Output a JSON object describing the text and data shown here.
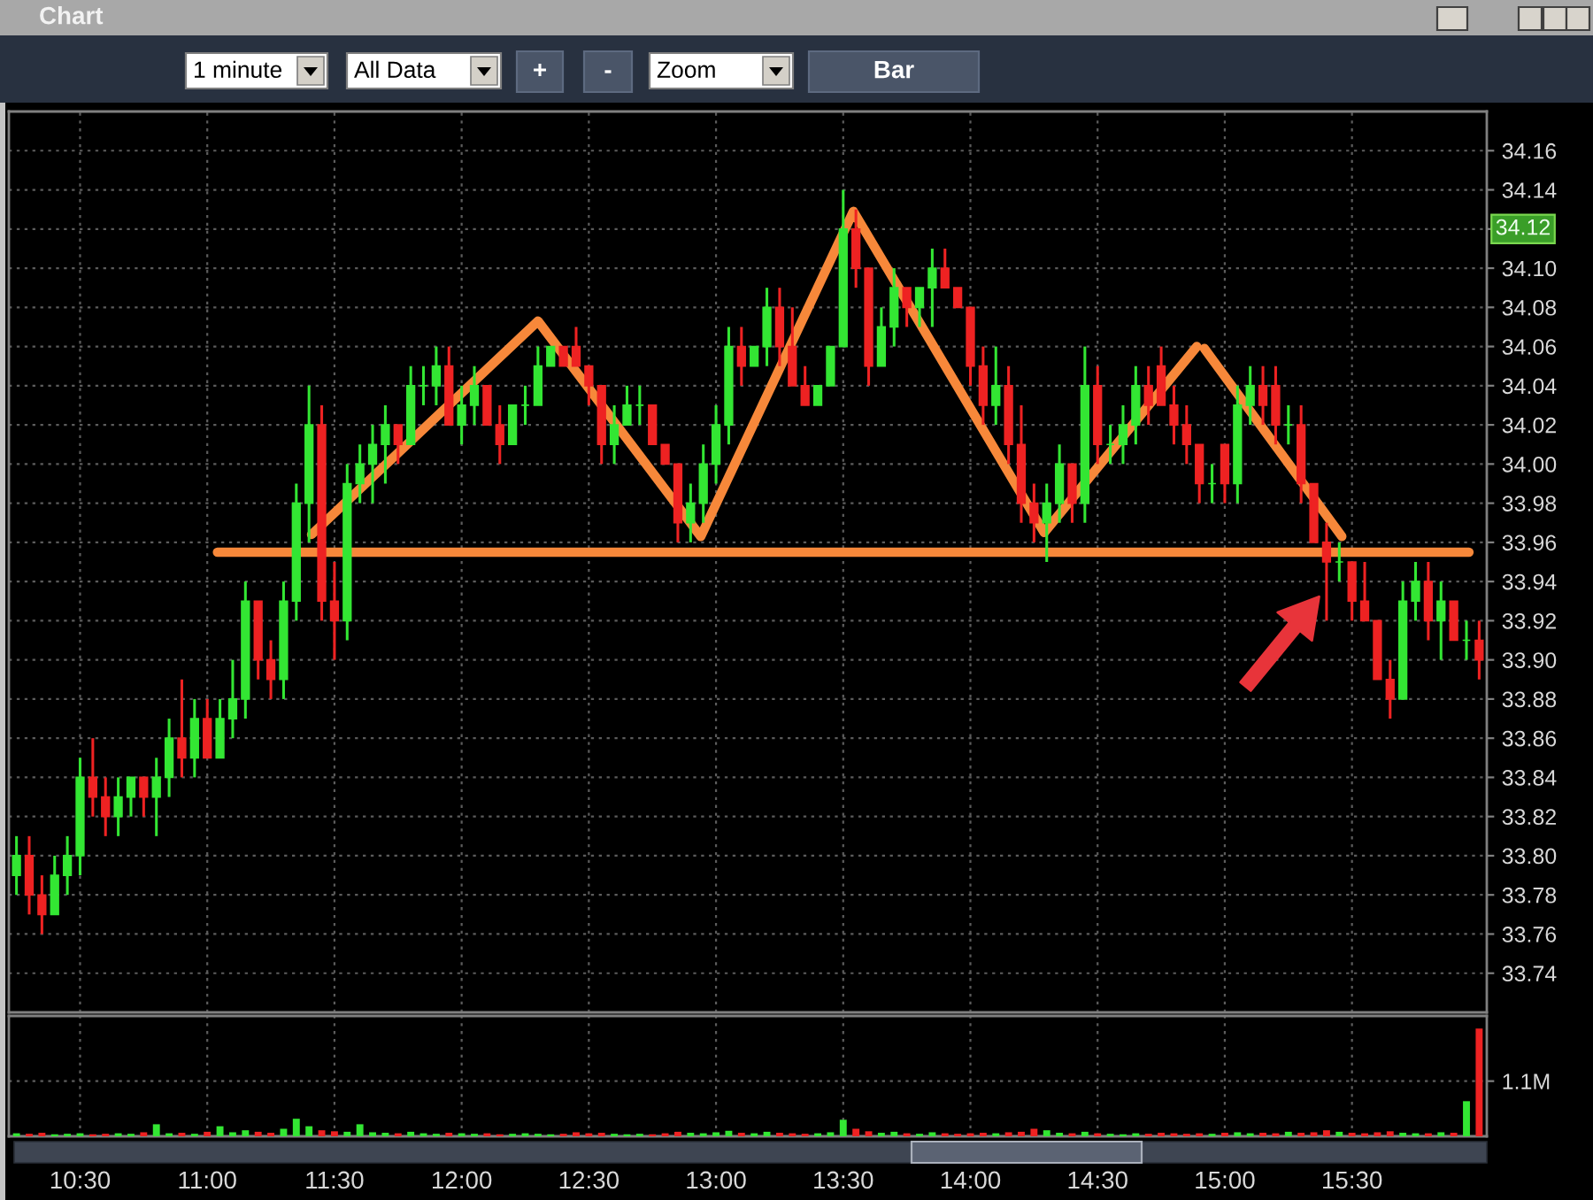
{
  "chart_data": [
    {
      "type": "candlestick",
      "title": "Chart",
      "annotations": [
        "1 minute",
        "All Data",
        "+",
        "-",
        "Zoom",
        "Bar",
        {
          "text": "34.12",
          "y": 34.12
        }
      ],
      "x": [
        10.25,
        10.3,
        10.35,
        10.4,
        10.45,
        10.5,
        10.55,
        10.6,
        10.65,
        10.7,
        10.75,
        10.8,
        10.85,
        10.9,
        10.95,
        11.0,
        11.05,
        11.1,
        11.15,
        11.2,
        11.25,
        11.3,
        11.35,
        11.4,
        11.45,
        11.5,
        11.55,
        11.6,
        11.65,
        11.7,
        11.75,
        11.8,
        11.85,
        11.9,
        11.95,
        12.0,
        12.05,
        12.1,
        12.15,
        12.2,
        12.25,
        12.3,
        12.35,
        12.4,
        12.45,
        12.5,
        12.55,
        12.6,
        12.65,
        12.7,
        12.75,
        12.8,
        12.85,
        12.9,
        12.95,
        13.0,
        13.05,
        13.1,
        13.15,
        13.2,
        13.25,
        13.3,
        13.35,
        13.4,
        13.45,
        13.5,
        13.55,
        13.6,
        13.65,
        13.7,
        13.75,
        13.8,
        13.85,
        13.9,
        13.95,
        14.0,
        14.05,
        14.1,
        14.15,
        14.2,
        14.25,
        14.3,
        14.35,
        14.4,
        14.45,
        14.5,
        14.55,
        14.6,
        14.65,
        14.7,
        14.75,
        14.8,
        14.85,
        14.9,
        14.95,
        15.0,
        15.05,
        15.1,
        15.15,
        15.2,
        15.25,
        15.3,
        15.35,
        15.4,
        15.45,
        15.5,
        15.55,
        15.6,
        15.65,
        15.7,
        15.75,
        15.8,
        15.85,
        15.9,
        15.95,
        16.0
      ],
      "ohlc": [
        [
          33.79,
          33.81,
          33.78,
          33.8
        ],
        [
          33.8,
          33.81,
          33.77,
          33.78
        ],
        [
          33.78,
          33.79,
          33.76,
          33.77
        ],
        [
          33.77,
          33.8,
          33.77,
          33.79
        ],
        [
          33.79,
          33.81,
          33.78,
          33.8
        ],
        [
          33.8,
          33.85,
          33.79,
          33.84
        ],
        [
          33.84,
          33.86,
          33.82,
          33.83
        ],
        [
          33.83,
          33.84,
          33.81,
          33.82
        ],
        [
          33.82,
          33.84,
          33.81,
          33.83
        ],
        [
          33.83,
          33.84,
          33.82,
          33.84
        ],
        [
          33.84,
          33.84,
          33.82,
          33.83
        ],
        [
          33.83,
          33.85,
          33.81,
          33.84
        ],
        [
          33.84,
          33.87,
          33.83,
          33.86
        ],
        [
          33.86,
          33.89,
          33.84,
          33.85
        ],
        [
          33.85,
          33.88,
          33.84,
          33.87
        ],
        [
          33.87,
          33.88,
          33.85,
          33.85
        ],
        [
          33.85,
          33.88,
          33.85,
          33.87
        ],
        [
          33.87,
          33.9,
          33.86,
          33.88
        ],
        [
          33.88,
          33.94,
          33.87,
          33.93
        ],
        [
          33.93,
          33.93,
          33.89,
          33.9
        ],
        [
          33.9,
          33.91,
          33.88,
          33.89
        ],
        [
          33.89,
          33.94,
          33.88,
          33.93
        ],
        [
          33.93,
          33.99,
          33.92,
          33.98
        ],
        [
          33.98,
          34.04,
          33.96,
          34.02
        ],
        [
          34.02,
          34.03,
          33.92,
          33.93
        ],
        [
          33.93,
          33.95,
          33.9,
          33.92
        ],
        [
          33.92,
          34.0,
          33.91,
          33.99
        ],
        [
          33.99,
          34.01,
          33.98,
          34.0
        ],
        [
          34.0,
          34.02,
          33.98,
          34.01
        ],
        [
          34.01,
          34.03,
          33.99,
          34.02
        ],
        [
          34.02,
          34.02,
          34.0,
          34.01
        ],
        [
          34.01,
          34.05,
          34.01,
          34.04
        ],
        [
          34.04,
          34.05,
          34.03,
          34.04
        ],
        [
          34.04,
          34.06,
          34.03,
          34.05
        ],
        [
          34.05,
          34.06,
          34.02,
          34.02
        ],
        [
          34.02,
          34.04,
          34.01,
          34.03
        ],
        [
          34.03,
          34.05,
          34.02,
          34.04
        ],
        [
          34.04,
          34.04,
          34.02,
          34.02
        ],
        [
          34.02,
          34.03,
          34.0,
          34.01
        ],
        [
          34.01,
          34.03,
          34.01,
          34.03
        ],
        [
          34.03,
          34.04,
          34.02,
          34.03
        ],
        [
          34.03,
          34.06,
          34.03,
          34.05
        ],
        [
          34.05,
          34.06,
          34.05,
          34.06
        ],
        [
          34.06,
          34.06,
          34.05,
          34.05
        ],
        [
          34.06,
          34.07,
          34.05,
          34.05
        ],
        [
          34.05,
          34.05,
          34.03,
          34.04
        ],
        [
          34.04,
          34.04,
          34.0,
          34.01
        ],
        [
          34.01,
          34.03,
          34.0,
          34.02
        ],
        [
          34.02,
          34.04,
          34.02,
          34.03
        ],
        [
          34.03,
          34.04,
          34.02,
          34.03
        ],
        [
          34.03,
          34.03,
          34.01,
          34.01
        ],
        [
          34.01,
          34.01,
          34.0,
          34.0
        ],
        [
          34.0,
          34.0,
          33.96,
          33.97
        ],
        [
          33.97,
          33.99,
          33.96,
          33.98
        ],
        [
          33.98,
          34.01,
          33.97,
          34.0
        ],
        [
          34.0,
          34.03,
          33.99,
          34.02
        ],
        [
          34.02,
          34.07,
          34.01,
          34.06
        ],
        [
          34.06,
          34.07,
          34.04,
          34.05
        ],
        [
          34.05,
          34.06,
          34.05,
          34.06
        ],
        [
          34.06,
          34.09,
          34.05,
          34.08
        ],
        [
          34.08,
          34.09,
          34.05,
          34.06
        ],
        [
          34.06,
          34.08,
          34.04,
          34.04
        ],
        [
          34.04,
          34.05,
          34.03,
          34.03
        ],
        [
          34.03,
          34.04,
          34.03,
          34.04
        ],
        [
          34.04,
          34.06,
          34.04,
          34.06
        ],
        [
          34.06,
          34.14,
          34.06,
          34.12
        ],
        [
          34.12,
          34.13,
          34.09,
          34.1
        ],
        [
          34.1,
          34.1,
          34.04,
          34.05
        ],
        [
          34.05,
          34.08,
          34.05,
          34.07
        ],
        [
          34.07,
          34.1,
          34.06,
          34.09
        ],
        [
          34.09,
          34.09,
          34.07,
          34.08
        ],
        [
          34.08,
          34.09,
          34.07,
          34.09
        ],
        [
          34.09,
          34.11,
          34.07,
          34.1
        ],
        [
          34.1,
          34.11,
          34.09,
          34.09
        ],
        [
          34.09,
          34.09,
          34.08,
          34.08
        ],
        [
          34.08,
          34.08,
          34.04,
          34.05
        ],
        [
          34.05,
          34.06,
          34.02,
          34.03
        ],
        [
          34.03,
          34.06,
          34.02,
          34.04
        ],
        [
          34.04,
          34.05,
          34.0,
          34.01
        ],
        [
          34.01,
          34.03,
          33.97,
          33.98
        ],
        [
          33.98,
          33.99,
          33.96,
          33.97
        ],
        [
          33.97,
          33.99,
          33.95,
          33.98
        ],
        [
          33.98,
          34.01,
          33.97,
          34.0
        ],
        [
          34.0,
          34.0,
          33.97,
          33.98
        ],
        [
          33.98,
          34.06,
          33.97,
          34.04
        ],
        [
          34.04,
          34.05,
          34.0,
          34.01
        ],
        [
          34.01,
          34.02,
          34.0,
          34.01
        ],
        [
          34.01,
          34.03,
          34.0,
          34.02
        ],
        [
          34.02,
          34.05,
          34.01,
          34.04
        ],
        [
          34.04,
          34.05,
          34.02,
          34.03
        ],
        [
          34.05,
          34.06,
          34.03,
          34.03
        ],
        [
          34.03,
          34.04,
          34.01,
          34.02
        ],
        [
          34.02,
          34.03,
          34.0,
          34.01
        ],
        [
          34.01,
          34.01,
          33.98,
          33.99
        ],
        [
          33.99,
          34.0,
          33.98,
          33.99
        ],
        [
          34.01,
          34.01,
          33.98,
          33.99
        ],
        [
          33.99,
          34.04,
          33.98,
          34.03
        ],
        [
          34.03,
          34.05,
          34.02,
          34.04
        ],
        [
          34.04,
          34.05,
          34.02,
          34.03
        ],
        [
          34.04,
          34.05,
          34.01,
          34.02
        ],
        [
          34.02,
          34.03,
          34.01,
          34.02
        ],
        [
          34.02,
          34.03,
          33.98,
          33.99
        ],
        [
          33.99,
          33.99,
          33.96,
          33.96
        ],
        [
          33.96,
          33.97,
          33.92,
          33.95
        ],
        [
          33.95,
          33.96,
          33.94,
          33.95
        ],
        [
          33.95,
          33.95,
          33.92,
          33.93
        ],
        [
          33.93,
          33.95,
          33.92,
          33.92
        ],
        [
          33.92,
          33.92,
          33.89,
          33.89
        ],
        [
          33.89,
          33.9,
          33.87,
          33.88
        ],
        [
          33.88,
          33.94,
          33.88,
          33.93
        ],
        [
          33.93,
          33.95,
          33.92,
          33.94
        ],
        [
          33.94,
          33.95,
          33.91,
          33.92
        ],
        [
          33.92,
          33.94,
          33.9,
          33.93
        ],
        [
          33.93,
          33.93,
          33.91,
          33.91
        ],
        [
          33.91,
          33.92,
          33.9,
          33.91
        ],
        [
          33.91,
          33.92,
          33.89,
          33.9
        ]
      ],
      "colors": [
        "#33e633",
        "#ee2222",
        "#ee2222",
        "#33e633",
        "#33e633",
        "#33e633",
        "#ee2222",
        "#ee2222",
        "#33e633",
        "#33e633",
        "#ee2222",
        "#33e633",
        "#33e633",
        "#ee2222",
        "#33e633",
        "#ee2222",
        "#33e633",
        "#33e633",
        "#33e633",
        "#ee2222",
        "#ee2222",
        "#33e633",
        "#33e633",
        "#33e633",
        "#ee2222",
        "#ee2222",
        "#33e633",
        "#33e633",
        "#33e633",
        "#33e633",
        "#ee2222",
        "#33e633",
        "#33e633",
        "#33e633",
        "#ee2222",
        "#33e633",
        "#33e633",
        "#ee2222",
        "#ee2222",
        "#33e633",
        "#33e633",
        "#33e633",
        "#33e633",
        "#ee2222",
        "#ee2222",
        "#ee2222",
        "#ee2222",
        "#33e633",
        "#33e633",
        "#33e633",
        "#ee2222",
        "#ee2222",
        "#ee2222",
        "#33e633",
        "#33e633",
        "#33e633",
        "#33e633",
        "#ee2222",
        "#33e633",
        "#33e633",
        "#ee2222",
        "#ee2222",
        "#ee2222",
        "#33e633",
        "#33e633",
        "#33e633",
        "#ee2222",
        "#ee2222",
        "#33e633",
        "#33e633",
        "#ee2222",
        "#33e633",
        "#33e633",
        "#ee2222",
        "#ee2222",
        "#ee2222",
        "#ee2222",
        "#33e633",
        "#ee2222",
        "#ee2222",
        "#ee2222",
        "#33e633",
        "#33e633",
        "#ee2222",
        "#33e633",
        "#ee2222",
        "#33e633",
        "#33e633",
        "#33e633",
        "#ee2222",
        "#ee2222",
        "#ee2222",
        "#ee2222",
        "#ee2222",
        "#33e633",
        "#ee2222",
        "#33e633",
        "#33e633",
        "#ee2222",
        "#ee2222",
        "#33e633",
        "#ee2222",
        "#ee2222",
        "#ee2222",
        "#33e633",
        "#ee2222",
        "#ee2222",
        "#ee2222",
        "#ee2222",
        "#33e633",
        "#33e633",
        "#ee2222",
        "#33e633",
        "#ee2222",
        "#33e633",
        "#ee2222"
      ],
      "series": [
        {
          "type": "line",
          "color": "#f7883a",
          "x": [
            11.41,
            12.3,
            12.94,
            13.54,
            14.29,
            14.89,
            14.9,
            14.92,
            15.46
          ],
          "values": [
            33.964,
            34.073,
            33.963,
            34.129,
            33.965,
            34.06,
            null,
            34.059,
            33.963
          ]
        },
        {
          "type": "line",
          "color": "#f7883a",
          "x": [
            11.04,
            15.96
          ],
          "values": [
            33.955,
            33.955
          ]
        }
      ],
      "xlim": [
        10.22,
        16.03
      ],
      "ylim": [
        33.72,
        34.18
      ],
      "xticks": [
        {
          "value": 10.5,
          "label": null
        },
        {
          "value": 11,
          "label": null
        },
        {
          "value": 11.5,
          "label": null
        },
        {
          "value": 12,
          "label": null
        },
        {
          "value": 12.5,
          "label": null
        },
        {
          "value": 13,
          "label": null
        },
        {
          "value": 13.5,
          "label": null
        },
        {
          "value": 14,
          "label": null
        },
        {
          "value": 14.5,
          "label": null
        },
        {
          "value": 15,
          "label": null
        },
        {
          "value": 15.5,
          "label": null
        }
      ],
      "yticks": [
        33.74,
        33.76,
        33.78,
        {
          "value": 33.8,
          "label": "33.80"
        },
        33.82,
        33.84,
        33.86,
        33.88,
        {
          "value": 33.9,
          "label": "33.90"
        },
        33.92,
        33.94,
        33.96,
        33.98,
        {
          "value": 34,
          "label": "34.00"
        },
        34.02,
        34.04,
        34.06,
        34.08,
        {
          "value": 34.1,
          "label": "34.10"
        },
        {
          "value": 34.12,
          "label": null
        },
        34.14,
        34.16
      ],
      "grid": true,
      "tick_labels": "y"
    },
    {
      "type": "bar",
      "x": [
        10.25,
        10.3,
        10.35,
        10.4,
        10.45,
        10.5,
        10.55,
        10.6,
        10.65,
        10.7,
        10.75,
        10.8,
        10.85,
        10.9,
        10.95,
        11.0,
        11.05,
        11.1,
        11.15,
        11.2,
        11.25,
        11.3,
        11.35,
        11.4,
        11.45,
        11.5,
        11.55,
        11.6,
        11.65,
        11.7,
        11.75,
        11.8,
        11.85,
        11.9,
        11.95,
        12.0,
        12.05,
        12.1,
        12.15,
        12.2,
        12.25,
        12.3,
        12.35,
        12.4,
        12.45,
        12.5,
        12.55,
        12.6,
        12.65,
        12.7,
        12.75,
        12.8,
        12.85,
        12.9,
        12.95,
        13.0,
        13.05,
        13.1,
        13.15,
        13.2,
        13.25,
        13.3,
        13.35,
        13.4,
        13.45,
        13.5,
        13.55,
        13.6,
        13.65,
        13.7,
        13.75,
        13.8,
        13.85,
        13.9,
        13.95,
        14.0,
        14.05,
        14.1,
        14.15,
        14.2,
        14.25,
        14.3,
        14.35,
        14.4,
        14.45,
        14.5,
        14.55,
        14.6,
        14.65,
        14.7,
        14.75,
        14.8,
        14.85,
        14.9,
        14.95,
        15.0,
        15.05,
        15.1,
        15.15,
        15.2,
        15.25,
        15.3,
        15.35,
        15.4,
        15.45,
        15.5,
        15.55,
        15.6,
        15.65,
        15.7,
        15.75,
        15.8,
        15.85,
        15.9,
        15.95,
        16.0
      ],
      "values": [
        60000,
        50000,
        70000,
        40000,
        50000,
        60000,
        40000,
        50000,
        60000,
        50000,
        80000,
        240000,
        60000,
        70000,
        50000,
        90000,
        200000,
        80000,
        120000,
        90000,
        70000,
        150000,
        350000,
        200000,
        120000,
        100000,
        90000,
        240000,
        80000,
        70000,
        60000,
        90000,
        60000,
        50000,
        70000,
        60000,
        50000,
        60000,
        40000,
        50000,
        60000,
        50000,
        40000,
        50000,
        80000,
        60000,
        70000,
        50000,
        40000,
        50000,
        40000,
        60000,
        90000,
        70000,
        60000,
        80000,
        110000,
        70000,
        60000,
        90000,
        70000,
        60000,
        50000,
        60000,
        80000,
        330000,
        150000,
        100000,
        70000,
        90000,
        60000,
        50000,
        80000,
        60000,
        50000,
        60000,
        70000,
        60000,
        80000,
        90000,
        150000,
        120000,
        70000,
        60000,
        90000,
        60000,
        50000,
        40000,
        60000,
        50000,
        70000,
        60000,
        50000,
        60000,
        50000,
        70000,
        80000,
        60000,
        70000,
        60000,
        90000,
        70000,
        80000,
        120000,
        90000,
        70000,
        60000,
        80000,
        100000,
        70000,
        60000,
        60000,
        80000,
        70000,
        700000,
        2150000
      ],
      "colors": [
        "#33e633",
        "#ee2222",
        "#ee2222",
        "#33e633",
        "#33e633",
        "#33e633",
        "#ee2222",
        "#ee2222",
        "#33e633",
        "#33e633",
        "#ee2222",
        "#33e633",
        "#33e633",
        "#ee2222",
        "#33e633",
        "#ee2222",
        "#33e633",
        "#33e633",
        "#33e633",
        "#ee2222",
        "#ee2222",
        "#33e633",
        "#33e633",
        "#33e633",
        "#ee2222",
        "#ee2222",
        "#33e633",
        "#33e633",
        "#33e633",
        "#33e633",
        "#ee2222",
        "#33e633",
        "#33e633",
        "#33e633",
        "#ee2222",
        "#33e633",
        "#33e633",
        "#ee2222",
        "#ee2222",
        "#33e633",
        "#33e633",
        "#33e633",
        "#33e633",
        "#ee2222",
        "#ee2222",
        "#ee2222",
        "#ee2222",
        "#33e633",
        "#33e633",
        "#33e633",
        "#ee2222",
        "#ee2222",
        "#ee2222",
        "#33e633",
        "#33e633",
        "#33e633",
        "#33e633",
        "#ee2222",
        "#33e633",
        "#33e633",
        "#ee2222",
        "#ee2222",
        "#ee2222",
        "#33e633",
        "#33e633",
        "#33e633",
        "#ee2222",
        "#ee2222",
        "#33e633",
        "#33e633",
        "#ee2222",
        "#33e633",
        "#33e633",
        "#ee2222",
        "#ee2222",
        "#ee2222",
        "#ee2222",
        "#33e633",
        "#ee2222",
        "#ee2222",
        "#ee2222",
        "#33e633",
        "#33e633",
        "#ee2222",
        "#33e633",
        "#ee2222",
        "#33e633",
        "#33e633",
        "#33e633",
        "#ee2222",
        "#ee2222",
        "#ee2222",
        "#ee2222",
        "#ee2222",
        "#33e633",
        "#ee2222",
        "#33e633",
        "#33e633",
        "#ee2222",
        "#ee2222",
        "#33e633",
        "#ee2222",
        "#ee2222",
        "#ee2222",
        "#33e633",
        "#ee2222",
        "#ee2222",
        "#ee2222",
        "#ee2222",
        "#33e633",
        "#33e633",
        "#ee2222",
        "#33e633",
        "#ee2222",
        "#33e633",
        "#ee2222"
      ],
      "xlim": [
        10.22,
        16.03
      ],
      "ylim": [
        0,
        2400000
      ],
      "xticks": [
        {
          "value": 10.5,
          "label": "10:30"
        },
        {
          "value": 11,
          "label": "11:00"
        },
        {
          "value": 11.5,
          "label": "11:30"
        },
        {
          "value": 12,
          "label": "12:00"
        },
        {
          "value": 12.5,
          "label": "12:30"
        },
        {
          "value": 13,
          "label": "13:00"
        },
        {
          "value": 13.5,
          "label": "13:30"
        },
        {
          "value": 14,
          "label": "14:00"
        },
        {
          "value": 14.5,
          "label": "14:30"
        },
        {
          "value": 15,
          "label": "15:00"
        },
        {
          "value": 15.5,
          "label": "15:30"
        }
      ],
      "yticks": [
        {
          "value": 1100000,
          "label": "1.1M"
        }
      ],
      "grid": true
    }
  ]
}
